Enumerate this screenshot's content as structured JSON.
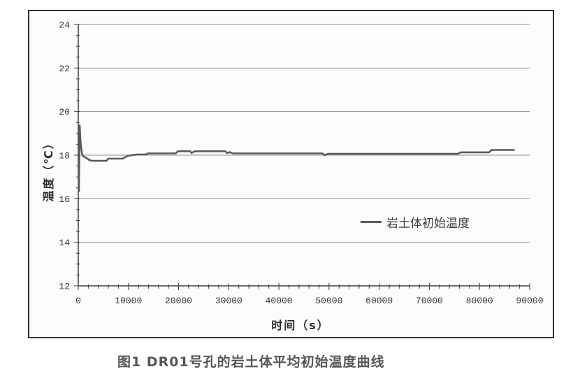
{
  "figure": {
    "caption": "图1 DR01号孔的岩土体平均初始温度曲线"
  },
  "chart_data": {
    "type": "line",
    "title": "",
    "xlabel": "时间（s）",
    "ylabel": "温度（℃）",
    "xlim": [
      0,
      90000
    ],
    "ylim": [
      12,
      24
    ],
    "x_ticks": [
      "0",
      "10000",
      "20000",
      "30000",
      "40000",
      "50000",
      "60000",
      "70000",
      "80000",
      "90000"
    ],
    "x_tick_values": [
      0,
      10000,
      20000,
      30000,
      40000,
      50000,
      60000,
      70000,
      80000,
      90000
    ],
    "x_minor_step": 2000,
    "y_ticks": [
      "12",
      "14",
      "16",
      "18",
      "20",
      "22",
      "24"
    ],
    "y_tick_values": [
      12,
      14,
      16,
      18,
      20,
      22,
      24
    ],
    "y_minor_step": 0.5,
    "grid": "horizontal-major-only",
    "legend": {
      "position": "inside-right-middle",
      "entries": [
        {
          "label": "岩土体初始温度",
          "color": "#5a5a5a"
        }
      ]
    },
    "style": {
      "axis_color": "#3f3f3f",
      "grid_color": "#8f8f8f",
      "tick_label_color": "#333333",
      "line_color": "#5a5a5a",
      "panel_background": "#fcfcfc",
      "line_width": 2.6
    },
    "series": [
      {
        "name": "岩土体初始温度",
        "color": "#5a5a5a",
        "points": [
          [
            0,
            16.35
          ],
          [
            120,
            16.35
          ],
          [
            280,
            19.4
          ],
          [
            480,
            18.55
          ],
          [
            720,
            18.1
          ],
          [
            950,
            17.95
          ],
          [
            1600,
            17.88
          ],
          [
            2200,
            17.78
          ],
          [
            2700,
            17.74
          ],
          [
            5600,
            17.74
          ],
          [
            6000,
            17.84
          ],
          [
            8800,
            17.84
          ],
          [
            9300,
            17.9
          ],
          [
            9900,
            17.97
          ],
          [
            10800,
            18.0
          ],
          [
            11600,
            18.03
          ],
          [
            13400,
            18.03
          ],
          [
            13900,
            18.08
          ],
          [
            19400,
            18.08
          ],
          [
            19900,
            18.18
          ],
          [
            22300,
            18.18
          ],
          [
            22600,
            18.1
          ],
          [
            23200,
            18.18
          ],
          [
            29300,
            18.18
          ],
          [
            29700,
            18.1
          ],
          [
            30200,
            18.14
          ],
          [
            30800,
            18.08
          ],
          [
            48700,
            18.08
          ],
          [
            49100,
            18.0
          ],
          [
            49800,
            18.06
          ],
          [
            75700,
            18.06
          ],
          [
            76300,
            18.13
          ],
          [
            81900,
            18.13
          ],
          [
            82400,
            18.24
          ],
          [
            87000,
            18.24
          ]
        ]
      }
    ]
  }
}
